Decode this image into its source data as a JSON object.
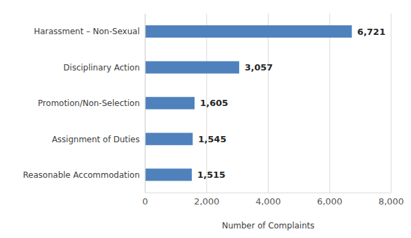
{
  "chart_data": {
    "type": "bar",
    "orientation": "horizontal",
    "categories": [
      "Harassment – Non-Sexual",
      "Disciplinary Action",
      "Promotion/Non-Selection",
      "Assignment of Duties",
      "Reasonable Accommodation"
    ],
    "values": [
      6721,
      3057,
      1605,
      1545,
      1515
    ],
    "value_labels": [
      "6,721",
      "3,057",
      "1,605",
      "1,545",
      "1,515"
    ],
    "data_labels": true,
    "color": "#4f81bd",
    "xlabel": "Number of Complaints",
    "xlim": [
      0,
      8000
    ],
    "xticks": [
      0,
      {
        "value": 2000,
        "label": "2,000"
      },
      {
        "value": 4000,
        "label": "4,000"
      },
      {
        "value": 6000,
        "label": "6,000"
      },
      {
        "value": 8000,
        "label": "8,000"
      }
    ],
    "grid": true
  }
}
